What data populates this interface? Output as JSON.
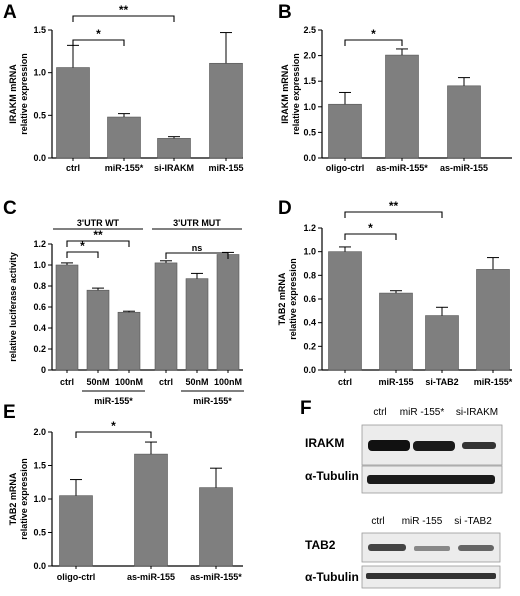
{
  "chart_data": [
    {
      "panel": "A",
      "type": "bar",
      "ylabel": "IRAKM mRNA relative expression",
      "categories": [
        "ctrl",
        "miR-155*",
        "si-IRAKM",
        "miR-155"
      ],
      "values": [
        1.06,
        0.48,
        0.23,
        1.11
      ],
      "errors": [
        0.26,
        0.04,
        0.02,
        0.36
      ],
      "ylim": [
        0,
        1.5
      ],
      "yticks": [
        "0.0",
        "0.5",
        "1.0",
        "1.5"
      ],
      "significance": [
        {
          "from": 0,
          "to": 1,
          "label": "*"
        },
        {
          "from": 0,
          "to": 2,
          "label": "**"
        }
      ]
    },
    {
      "panel": "B",
      "type": "bar",
      "ylabel": "IRAKM mRNA relative expression",
      "categories": [
        "oligo-ctrl",
        "as-miR-155*",
        "as-miR-155"
      ],
      "values": [
        1.05,
        2.01,
        1.41
      ],
      "errors": [
        0.23,
        0.12,
        0.16
      ],
      "ylim": [
        0,
        2.5
      ],
      "yticks": [
        "0.0",
        "0.5",
        "1.0",
        "1.5",
        "2.0",
        "2.5"
      ],
      "significance": [
        {
          "from": 0,
          "to": 1,
          "label": "*"
        }
      ]
    },
    {
      "panel": "C",
      "type": "bar",
      "ylabel": "relative luciferase activity",
      "categories": [
        "ctrl",
        "50nM",
        "100nM",
        "ctrl",
        "50nM",
        "100nM"
      ],
      "values": [
        1.0,
        0.76,
        0.55,
        1.02,
        0.87,
        1.1
      ],
      "errors": [
        0.02,
        0.02,
        0.01,
        0.02,
        0.05,
        0.02
      ],
      "ylim": [
        0,
        1.2
      ],
      "yticks": [
        "0",
        "0.2",
        "0.4",
        "0.6",
        "0.8",
        "1.0",
        "1.2"
      ],
      "groups": [
        "3'UTR WT",
        "3'UTR MUT"
      ],
      "sublabels": [
        "miR-155*",
        "miR-155*"
      ],
      "significance": [
        {
          "from": 0,
          "to": 1,
          "label": "*"
        },
        {
          "from": 0,
          "to": 2,
          "label": "**"
        },
        {
          "from": 3,
          "to": 5,
          "label": "ns"
        }
      ]
    },
    {
      "panel": "D",
      "type": "bar",
      "ylabel": "TAB2 mRNA relative expression",
      "categories": [
        "ctrl",
        "miR-155",
        "si-TAB2",
        "miR-155*"
      ],
      "values": [
        1.0,
        0.65,
        0.46,
        0.85
      ],
      "errors": [
        0.04,
        0.02,
        0.07,
        0.1
      ],
      "ylim": [
        0,
        1.2
      ],
      "yticks": [
        "0.0",
        "0.2",
        "0.4",
        "0.6",
        "0.8",
        "1.0",
        "1.2"
      ],
      "significance": [
        {
          "from": 0,
          "to": 1,
          "label": "*"
        },
        {
          "from": 0,
          "to": 2,
          "label": "**"
        }
      ]
    },
    {
      "panel": "E",
      "type": "bar",
      "ylabel": "TAB2 mRNA relative expression",
      "categories": [
        "oligo-ctrl",
        "as-miR-155",
        "as-miR-155*"
      ],
      "values": [
        1.05,
        1.67,
        1.17
      ],
      "errors": [
        0.24,
        0.18,
        0.29
      ],
      "ylim": [
        0,
        2.0
      ],
      "yticks": [
        "0.0",
        "0.5",
        "1.0",
        "1.5",
        "2.0"
      ],
      "significance": [
        {
          "from": 0,
          "to": 1,
          "label": "*"
        }
      ]
    }
  ],
  "panel_f": {
    "letter": "F",
    "blot1": {
      "lanes": [
        "ctrl",
        "miR -155*",
        "si-IRAKM"
      ],
      "rows": [
        "IRAKM",
        "α-Tubulin"
      ]
    },
    "blot2": {
      "lanes": [
        "ctrl",
        "miR -155",
        "si -TAB2"
      ],
      "rows": [
        "TAB2",
        "α-Tubulin"
      ]
    }
  },
  "colors": {
    "bar": "#7f7f7f",
    "axis": "#000000",
    "blot_bg": "#ececec",
    "band": "#111111"
  }
}
